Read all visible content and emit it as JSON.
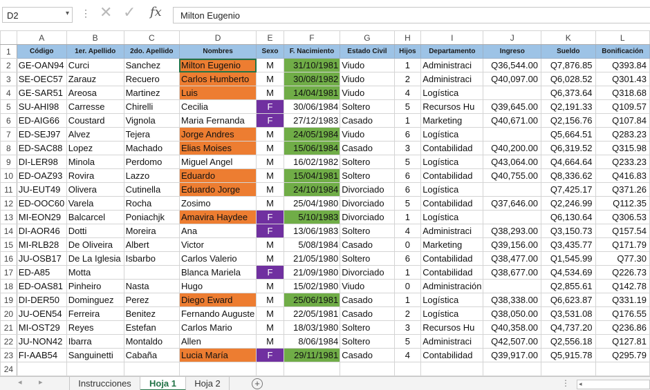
{
  "formula_bar": {
    "name_box": "D2",
    "name_box_arrow": "▾",
    "dots": "⋮",
    "cancel_icon": "✕",
    "enter_icon": "✓",
    "fx_label": "fx",
    "formula": "Milton Eugenio"
  },
  "grid": {
    "columns": [
      "A",
      "B",
      "C",
      "D",
      "E",
      "F",
      "G",
      "H",
      "I",
      "J",
      "K",
      "L"
    ],
    "header_row": [
      "Código",
      "1er. Apellido",
      "2do. Apellido",
      "Nombres",
      "Sexo",
      "F. Nacimiento",
      "Estado Civil",
      "Hijos",
      "Departamento",
      "Ingreso",
      "Sueldo",
      "Bonificación"
    ],
    "rows": [
      [
        "GE-OAN94",
        "Curci",
        "Sanchez",
        "Milton Eugenio",
        "M",
        "31/10/1981",
        "Viudo",
        "1",
        "Administraci",
        "Q36,544.00",
        "Q7,876.85",
        "Q393.84"
      ],
      [
        "SE-OEC57",
        "Zarauz",
        "Recuero",
        "Carlos Humberto",
        "M",
        "30/08/1982",
        "Viudo",
        "2",
        "Administraci",
        "Q40,097.00",
        "Q6,028.52",
        "Q301.43"
      ],
      [
        "GE-SAR51",
        "Areosa",
        "Martinez",
        "Luis",
        "M",
        "14/04/1981",
        "Viudo",
        "4",
        "Logística",
        "",
        "Q6,373.64",
        "Q318.68"
      ],
      [
        "SU-AHI98",
        "Carresse",
        "Chirelli",
        "Cecilia",
        "F",
        "30/06/1984",
        "Soltero",
        "5",
        "Recursos Hu",
        "Q39,645.00",
        "Q2,191.33",
        "Q109.57"
      ],
      [
        "ED-AIG66",
        "Coustard",
        "Vignola",
        "Maria Fernanda",
        "F",
        "27/12/1983",
        "Casado",
        "1",
        "Marketing",
        "Q40,671.00",
        "Q2,156.76",
        "Q107.84"
      ],
      [
        "ED-SEJ97",
        "Alvez",
        "Tejera",
        "Jorge Andres",
        "M",
        "24/05/1984",
        "Viudo",
        "6",
        "Logística",
        "",
        "Q5,664.51",
        "Q283.23"
      ],
      [
        "ED-SAC88",
        "Lopez",
        "Machado",
        "Elias Moises",
        "M",
        "15/06/1984",
        "Casado",
        "3",
        "Contabilidad",
        "Q40,200.00",
        "Q6,319.52",
        "Q315.98"
      ],
      [
        "DI-LER98",
        "Minola",
        "Perdomo",
        "Miguel Angel",
        "M",
        "16/02/1982",
        "Soltero",
        "5",
        "Logística",
        "Q43,064.00",
        "Q4,664.64",
        "Q233.23"
      ],
      [
        "ED-OAZ93",
        "Rovira",
        "Lazzo",
        "Eduardo",
        "M",
        "15/04/1981",
        "Soltero",
        "6",
        "Contabilidad",
        "Q40,755.00",
        "Q8,336.62",
        "Q416.83"
      ],
      [
        "JU-EUT49",
        "Olivera",
        "Cutinella",
        "Eduardo Jorge",
        "M",
        "24/10/1984",
        "Divorciado",
        "6",
        "Logística",
        "",
        "Q7,425.17",
        "Q371.26"
      ],
      [
        "ED-OOC60",
        "Varela",
        "Rocha",
        "Zosimo",
        "M",
        "25/04/1980",
        "Divorciado",
        "5",
        "Contabilidad",
        "Q37,646.00",
        "Q2,246.99",
        "Q112.35"
      ],
      [
        "MI-EON29",
        "Balcarcel",
        "Poniachjk",
        "Amavira Haydee",
        "F",
        "5/10/1983",
        "Divorciado",
        "1",
        "Logística",
        "",
        "Q6,130.64",
        "Q306.53"
      ],
      [
        "DI-AOR46",
        "Dotti",
        "Moreira",
        "Ana",
        "F",
        "13/06/1983",
        "Soltero",
        "4",
        "Administraci",
        "Q38,293.00",
        "Q3,150.73",
        "Q157.54"
      ],
      [
        "MI-RLB28",
        "De Oliveira",
        "Albert",
        "Victor",
        "M",
        "5/08/1984",
        "Casado",
        "0",
        "Marketing",
        "Q39,156.00",
        "Q3,435.77",
        "Q171.79"
      ],
      [
        "JU-OSB17",
        "De La Iglesia",
        "Isbarbo",
        "Carlos Valerio",
        "M",
        "21/05/1980",
        "Soltero",
        "6",
        "Contabilidad",
        "Q38,477.00",
        "Q1,545.99",
        "Q77.30"
      ],
      [
        "ED-A85",
        "Motta",
        "",
        "Blanca Mariela",
        "F",
        "21/09/1980",
        "Divorciado",
        "1",
        "Contabilidad",
        "Q38,677.00",
        "Q4,534.69",
        "Q226.73"
      ],
      [
        "ED-OAS81",
        "Pinheiro",
        "Nasta",
        "Hugo",
        "M",
        "15/02/1980",
        "Viudo",
        "0",
        "Administración",
        "",
        "Q2,855.61",
        "Q142.78"
      ],
      [
        "DI-DER50",
        "Dominguez",
        "Perez",
        "Diego Eward",
        "M",
        "25/06/1981",
        "Casado",
        "1",
        "Logística",
        "Q38,338.00",
        "Q6,623.87",
        "Q331.19"
      ],
      [
        "JU-OEN54",
        "Ferreira",
        "Benitez",
        "Fernando Auguste",
        "M",
        "22/05/1981",
        "Casado",
        "2",
        "Logística",
        "Q38,050.00",
        "Q3,531.08",
        "Q176.55"
      ],
      [
        "MI-OST29",
        "Reyes",
        "Estefan",
        "Carlos Mario",
        "M",
        "18/03/1980",
        "Soltero",
        "3",
        "Recursos Hu",
        "Q40,358.00",
        "Q4,737.20",
        "Q236.86"
      ],
      [
        "JU-NON42",
        "Ibarra",
        "Montaldo",
        "Allen",
        "M",
        "8/06/1984",
        "Soltero",
        "5",
        "Administraci",
        "Q42,507.00",
        "Q2,556.18",
        "Q127.81"
      ],
      [
        "FI-AAB54",
        "Sanguinetti",
        "Cabaña",
        "Lucia María",
        "F",
        "29/11/1981",
        "Casado",
        "4",
        "Contabilidad",
        "Q39,917.00",
        "Q5,915.78",
        "Q295.79"
      ]
    ],
    "highlight_colors": {
      "nombres_orange": "#ed7d31",
      "fecha_green": "#70ad47",
      "sexo_purple": "#7030a0",
      "header_blue": "#9dc3e6"
    }
  },
  "sheet_tabs": {
    "prev_icon": "◂",
    "next_icon": "▸",
    "tabs": [
      "Instrucciones",
      "Hoja 1",
      "Hoja 2"
    ],
    "active": "Hoja 1",
    "add_icon": "+",
    "more_icon": "⋮",
    "scroll_arrow": "◂"
  }
}
